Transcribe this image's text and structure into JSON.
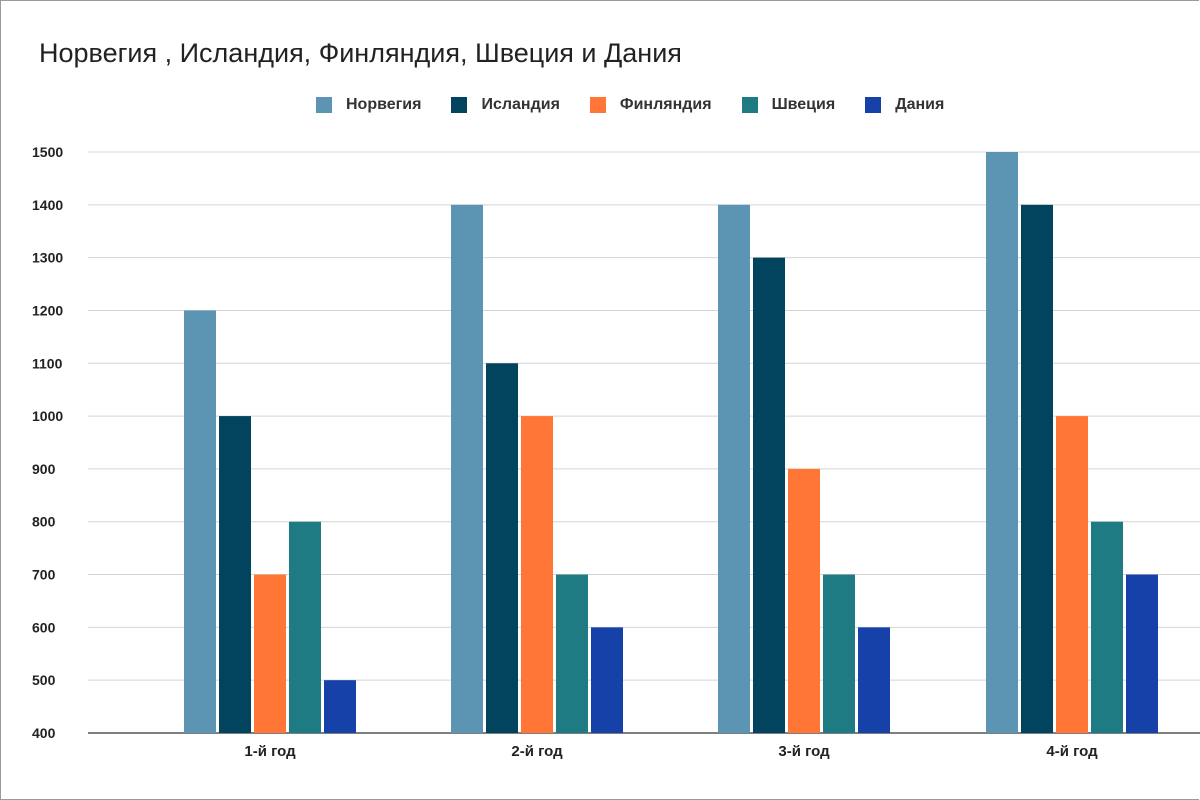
{
  "chart_data": {
    "type": "bar",
    "title": "Норвегия , Исландия, Финляндия, Швеция и Дания",
    "categories": [
      "1-й год",
      "2-й год",
      "3-й год",
      "4-й год"
    ],
    "series": [
      {
        "name": "Норвегия",
        "color": "#5b95b3",
        "values": [
          1200,
          1400,
          1400,
          1500
        ]
      },
      {
        "name": "Исландия",
        "color": "#02435d",
        "values": [
          1000,
          1100,
          1300,
          1400
        ]
      },
      {
        "name": "Финляндия",
        "color": "#ff7637",
        "values": [
          700,
          1000,
          900,
          1000
        ]
      },
      {
        "name": "Швеция",
        "color": "#1e7a83",
        "values": [
          800,
          700,
          700,
          800
        ]
      },
      {
        "name": "Дания",
        "color": "#1541a9",
        "values": [
          500,
          600,
          600,
          700
        ]
      }
    ],
    "ylim": [
      400,
      1500
    ],
    "yticks": [
      400,
      500,
      600,
      700,
      800,
      900,
      1000,
      1100,
      1200,
      1300,
      1400,
      1500
    ],
    "grid": true,
    "legend_position": "top"
  }
}
